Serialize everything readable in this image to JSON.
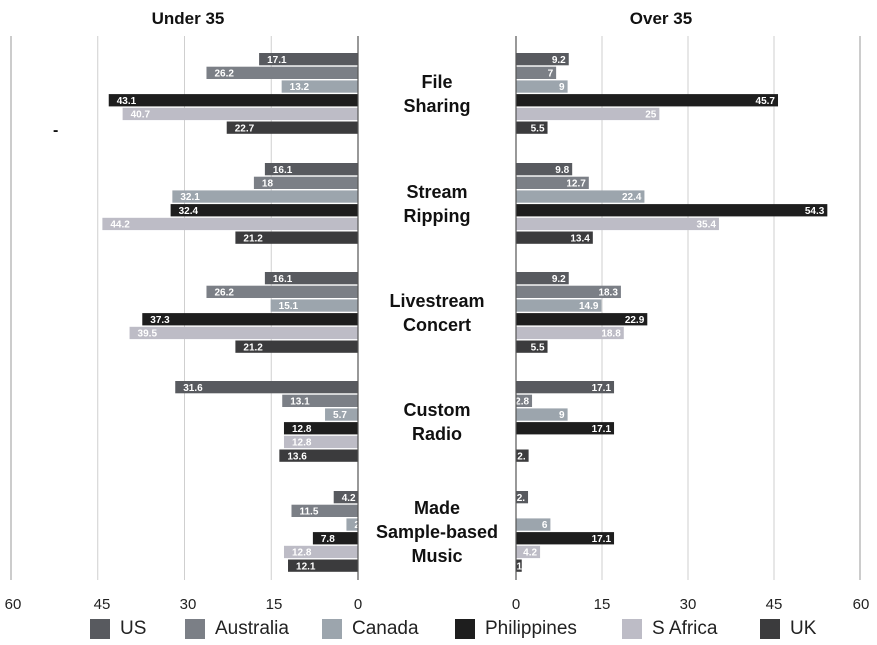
{
  "chart_data": {
    "type": "bar",
    "orientation": "horizontal",
    "layout": "back-to-back",
    "panels": [
      {
        "title": "Under 35",
        "xlim": [
          60,
          0
        ],
        "ticks": [
          "60",
          "45",
          "30",
          "15",
          "0"
        ]
      },
      {
        "title": "Over 35",
        "xlim": [
          0,
          60
        ],
        "ticks": [
          "0",
          "15",
          "30",
          "45",
          "60"
        ]
      }
    ],
    "categories": [
      [
        "File",
        "Sharing"
      ],
      [
        "Stream",
        "Ripping"
      ],
      [
        "Livestream",
        "Concert"
      ],
      [
        "Custom",
        "Radio"
      ],
      [
        "Made",
        "Sample-based",
        "Music"
      ]
    ],
    "series": [
      {
        "name": "US",
        "color": "#585a5f",
        "under35": [
          17.1,
          16.1,
          16.1,
          31.6,
          4.2
        ],
        "over35": [
          9.2,
          9.8,
          9.2,
          17.1,
          2.1
        ]
      },
      {
        "name": "Australia",
        "color": "#7b7f86",
        "under35": [
          26.2,
          18,
          26.2,
          13.1,
          11.5
        ],
        "over35": [
          7,
          12.7,
          18.3,
          2.8,
          0
        ]
      },
      {
        "name": "Canada",
        "color": "#9ca5ad",
        "under35": [
          13.2,
          32.1,
          15.1,
          5.7,
          2
        ],
        "over35": [
          9,
          22.4,
          14.9,
          9,
          6
        ]
      },
      {
        "name": "Philippines",
        "color": "#1e1e1e",
        "under35": [
          43.1,
          32.4,
          37.3,
          12.8,
          7.8
        ],
        "over35": [
          45.7,
          54.3,
          22.9,
          17.1,
          17.1
        ]
      },
      {
        "name": "S Africa",
        "color": "#bdbcc6",
        "under35": [
          40.7,
          44.2,
          39.5,
          12.8,
          12.8
        ],
        "over35": [
          25,
          35.4,
          18.8,
          0,
          4.2
        ]
      },
      {
        "name": "UK",
        "color": "#3b3b3d",
        "under35": [
          22.7,
          21.2,
          21.2,
          13.6,
          12.1
        ],
        "over35": [
          5.5,
          13.4,
          5.5,
          2.2,
          1
        ]
      }
    ],
    "bar_label_text": {
      "under35": [
        [
          "17.1",
          "26.2",
          "13.2",
          "43.1",
          "40.7",
          "22.7"
        ],
        [
          "16.1",
          "18",
          "32.1",
          "32.4",
          "44.2",
          "21.2"
        ],
        [
          "16.1",
          "26.2",
          "15.1",
          "37.3",
          "39.5",
          "21.2"
        ],
        [
          "31.6",
          "13.1",
          "5.7",
          "12.8",
          "12.8",
          "13.6"
        ],
        [
          "4.2",
          "11.5",
          "2",
          "7.8",
          "12.8",
          "12.1"
        ]
      ],
      "over35": [
        [
          "9.2",
          "7",
          "9",
          "45.7",
          "25",
          "5.5"
        ],
        [
          "9.8",
          "12.7",
          "22.4",
          "54.3",
          "35.4",
          "13.4"
        ],
        [
          "9.2",
          "18.3",
          "14.9",
          "22.9",
          "18.8",
          "5.5"
        ],
        [
          "17.1",
          "2.8",
          "9",
          "17.1",
          "",
          "2."
        ],
        [
          "2.",
          "",
          "6",
          "17.1",
          "4.2",
          "1"
        ]
      ]
    },
    "grid": true,
    "legend_position": "bottom"
  },
  "stray_mark": "-"
}
